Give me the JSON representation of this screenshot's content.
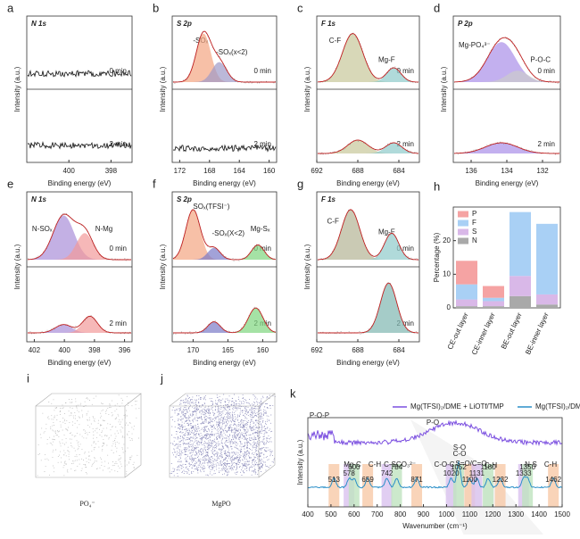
{
  "xps_panels": [
    {
      "letter": "a",
      "element": "N 1s",
      "xlim": [
        402,
        397
      ],
      "xticks": [
        400,
        398
      ],
      "xlabel": "Binding energy (eV)",
      "ylabel": "Intensity (a.u.)",
      "top_label": "0 min",
      "bottom_label": "2 min",
      "peaks": []
    },
    {
      "letter": "b",
      "element": "S 2p",
      "xlim": [
        173,
        159
      ],
      "xticks": [
        172,
        168,
        164,
        160
      ],
      "xlabel": "Binding energy (eV)",
      "ylabel": "Intensity (a.u.)",
      "top_label": "0 min",
      "bottom_label": "2 min",
      "peaks": [
        "-SOₓ",
        "-SOₓ(x<2)"
      ]
    },
    {
      "letter": "c",
      "element": "F 1s",
      "xlim": [
        692,
        682
      ],
      "xticks": [
        692,
        688,
        684
      ],
      "xlabel": "Binding energy (eV)",
      "ylabel": "Intensity (a.u.)",
      "top_label": "0 min",
      "bottom_label": "2 min",
      "peaks": [
        "C-F",
        "Mg-F"
      ]
    },
    {
      "letter": "d",
      "element": "P 2p",
      "xlim": [
        137,
        131
      ],
      "xticks": [
        136,
        134,
        132
      ],
      "xlabel": "Binding energy (eV)",
      "ylabel": "Intensity (a.u.)",
      "top_label": "0 min",
      "bottom_label": "2 min",
      "peaks": [
        "Mg-PO₄³⁻",
        "P-O-C"
      ]
    },
    {
      "letter": "e",
      "element": "N 1s",
      "xlim": [
        402.5,
        395.5
      ],
      "xticks": [
        402,
        400,
        398,
        396
      ],
      "xlabel": "Binding energy (eV)",
      "ylabel": "Intensity (a.u.)",
      "top_label": "0 min",
      "bottom_label": "2 min",
      "peaks": [
        "N-SOₓ",
        "N-Mg"
      ]
    },
    {
      "letter": "f",
      "element": "S 2p",
      "xlim": [
        173,
        158
      ],
      "xticks": [
        170,
        165,
        160
      ],
      "xlabel": "Binding energy (eV)",
      "ylabel": "Intensity (a.u.)",
      "top_label": "0 min",
      "bottom_label": "2 min",
      "peaks": [
        "SOₓ(TFSI⁻)",
        "-SOₓ(X<2)",
        "Mg-Sₓ"
      ]
    },
    {
      "letter": "g",
      "element": "F 1s",
      "xlim": [
        692,
        682
      ],
      "xticks": [
        692,
        688,
        684
      ],
      "xlabel": "Binding energy (eV)",
      "ylabel": "Intensity (a.u.)",
      "top_label": "0 min",
      "bottom_label": "2 min",
      "peaks": [
        "C-F",
        "Mg-F"
      ]
    }
  ],
  "bar_panel": {
    "letter": "h",
    "ylabel": "Percentage (%)",
    "ylim": [
      0,
      30
    ],
    "yticks": [
      0,
      10,
      20
    ],
    "categories": [
      "CE-out layer",
      "CE-inner layer",
      "BE-out layer",
      "BE-inner layer"
    ],
    "series": [
      {
        "name": "N",
        "color": "#a9a9a9",
        "values": [
          0.5,
          0.5,
          3.5,
          1
        ]
      },
      {
        "name": "S",
        "color": "#d9b8e8",
        "values": [
          2,
          1.5,
          6,
          3
        ]
      },
      {
        "name": "F",
        "color": "#a9d0f5",
        "values": [
          4.5,
          1,
          19,
          21
        ]
      },
      {
        "name": "P",
        "color": "#f5a3a3",
        "values": [
          7,
          3.5,
          0,
          0
        ]
      }
    ]
  },
  "images": [
    {
      "letter": "i",
      "label": "PO₄⁻"
    },
    {
      "letter": "j",
      "label": "MgPO"
    }
  ],
  "ftir_panel": {
    "letter": "k",
    "xlabel": "Wavenumber (cm⁻¹)",
    "ylabel": "Intensity (a.u.)",
    "xlim": [
      400,
      1500
    ],
    "xticks": [
      400,
      500,
      600,
      700,
      800,
      900,
      1000,
      1100,
      1200,
      1300,
      1400,
      1500
    ],
    "series": [
      {
        "name": "Mg(TFSI)₂/DME + LiOTf/TMP",
        "color": "#7b4fe0"
      },
      {
        "name": "Mg(TFSI)₂/DME",
        "color": "#2a8fc8"
      }
    ],
    "annotations": [
      "P-O-P",
      "P-O",
      "Mg-C",
      "C-H",
      "C-S",
      "CO₃²⁻",
      "C-O-C",
      "S-O",
      "C-O",
      "S=O/C=O",
      "C-H",
      "N-S",
      "C-H"
    ],
    "peak_numbers": [
      513,
      578,
      600,
      659,
      742,
      784,
      871,
      1020,
      1052,
      1100,
      1131,
      1180,
      1232,
      1333,
      1350,
      1462
    ]
  }
}
